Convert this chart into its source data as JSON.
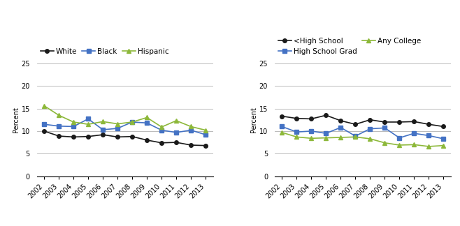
{
  "years": [
    2002,
    2003,
    2004,
    2005,
    2006,
    2007,
    2008,
    2009,
    2010,
    2011,
    2012,
    2013
  ],
  "chart1": {
    "White": [
      10.0,
      8.9,
      8.7,
      8.8,
      9.2,
      8.7,
      8.8,
      8.0,
      7.4,
      7.5,
      6.9,
      6.8
    ],
    "Black": [
      11.5,
      11.1,
      11.0,
      12.7,
      10.3,
      10.6,
      12.0,
      11.8,
      10.2,
      9.7,
      10.2,
      9.2
    ],
    "Hispanic": [
      15.6,
      13.5,
      12.0,
      11.5,
      12.1,
      11.6,
      12.0,
      13.0,
      10.9,
      12.3,
      11.0,
      10.2
    ]
  },
  "chart1_colors": {
    "White": "#1a1a1a",
    "Black": "#4472c4",
    "Hispanic": "#8db83a"
  },
  "chart1_markers": {
    "White": "o",
    "Black": "s",
    "Hispanic": "^"
  },
  "chart2": {
    "<High School": [
      13.3,
      12.8,
      12.7,
      13.5,
      12.3,
      11.5,
      12.5,
      12.0,
      12.0,
      12.1,
      11.5,
      11.0
    ],
    "High School Grad": [
      11.0,
      9.8,
      10.0,
      9.5,
      10.8,
      8.9,
      10.5,
      10.7,
      8.5,
      9.5,
      9.0,
      8.3
    ],
    "Any College": [
      9.7,
      8.7,
      8.4,
      8.5,
      8.6,
      8.7,
      8.3,
      7.4,
      6.9,
      7.0,
      6.6,
      6.8
    ]
  },
  "chart2_colors": {
    "<High School": "#1a1a1a",
    "High School Grad": "#4472c4",
    "Any College": "#8db83a"
  },
  "chart2_markers": {
    "<High School": "o",
    "High School Grad": "s",
    "Any College": "^"
  },
  "ylim": [
    0,
    25
  ],
  "yticks": [
    0,
    5,
    10,
    15,
    20,
    25
  ],
  "ylabel": "Percent",
  "background_color": "#ffffff",
  "grid_color": "#b0b0b0",
  "line_width": 1.2,
  "marker_size": 4,
  "font_size": 7,
  "legend_font_size": 7.5
}
